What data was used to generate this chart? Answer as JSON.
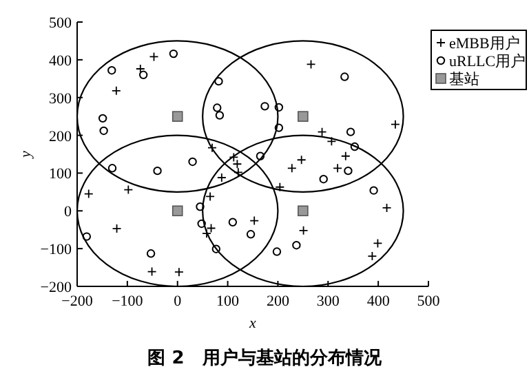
{
  "chart_data": {
    "type": "scatter",
    "title": "图 2　用户与基站的分布情况",
    "xlabel": "x",
    "ylabel": "y",
    "xlim": [
      -200,
      500
    ],
    "ylim": [
      -200,
      500
    ],
    "xticks": [
      -200,
      -100,
      0,
      100,
      200,
      300,
      400,
      500
    ],
    "yticks": [
      -200,
      -100,
      0,
      100,
      200,
      300,
      400,
      500
    ],
    "legend": "top right",
    "series": [
      {
        "type": "scatter",
        "name": "eMBB用户",
        "color": "#000000",
        "marker": "cross",
        "x": [
          -47,
          -74,
          -122,
          69,
          112,
          119,
          121,
          88,
          -177,
          -98,
          65,
          67,
          58,
          153,
          -121,
          -51,
          3,
          204,
          307,
          247,
          228,
          335,
          319,
          417,
          251,
          399,
          388,
          266,
          434,
          288
        ],
        "values": [
          408,
          376,
          318,
          167,
          142,
          124,
          102,
          88,
          45,
          56,
          38,
          -46,
          -60,
          -26,
          -47,
          -161,
          -162,
          63,
          184,
          135,
          113,
          145,
          113,
          8,
          -52,
          -86,
          -120,
          388,
          229,
          209
        ]
      },
      {
        "type": "scatter",
        "name": "uRLLC用户",
        "color": "#000000",
        "marker": "circle",
        "x": [
          -8,
          -131,
          -68,
          -149,
          -147,
          82,
          79,
          84,
          174,
          202,
          202,
          30,
          165,
          -130,
          -40,
          45,
          48,
          77,
          110,
          146,
          -181,
          -53,
          198,
          353,
          340,
          291,
          391,
          237,
          333,
          345
        ],
        "values": [
          416,
          372,
          360,
          245,
          212,
          343,
          273,
          253,
          277,
          274,
          220,
          130,
          145,
          113,
          106,
          11,
          -34,
          -101,
          -30,
          -62,
          -68,
          -113,
          -108,
          170,
          106,
          84,
          54,
          -91,
          355,
          209
        ]
      },
      {
        "type": "scatter",
        "name": "基站",
        "color": "#999999",
        "marker": "square",
        "x": [
          0,
          250,
          0,
          250
        ],
        "values": [
          250,
          250,
          0,
          0
        ]
      }
    ]
  }
}
